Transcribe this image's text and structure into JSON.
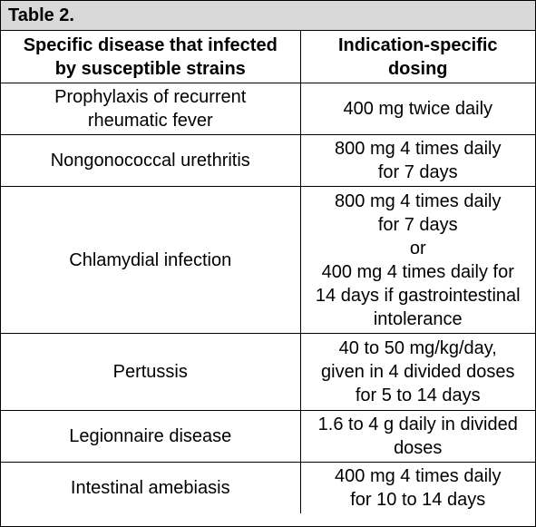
{
  "caption": "Table 2.",
  "headers": [
    [
      "Specific disease that infected",
      "by susceptible strains"
    ],
    [
      "Indication-specific",
      "dosing"
    ]
  ],
  "rows": [
    {
      "disease": [
        "Prophylaxis of recurrent",
        "rheumatic fever"
      ],
      "dosing": [
        "400 mg twice daily"
      ]
    },
    {
      "disease": [
        "Nongonococcal urethritis"
      ],
      "dosing": [
        "800 mg 4 times daily",
        "for 7 days"
      ]
    },
    {
      "disease": [
        "Chlamydial infection"
      ],
      "dosing": [
        "800 mg 4 times daily",
        "for 7 days",
        "or",
        "400 mg 4 times daily for",
        "14 days if gastrointestinal",
        "intolerance"
      ]
    },
    {
      "disease": [
        "Pertussis"
      ],
      "dosing": [
        "40 to 50 mg/kg/day,",
        "given in 4 divided doses",
        "for 5 to 14 days"
      ]
    },
    {
      "disease": [
        "Legionnaire disease"
      ],
      "dosing": [
        "1.6 to 4 g daily in divided",
        "doses"
      ]
    },
    {
      "disease": [
        "Intestinal amebiasis"
      ],
      "dosing": [
        "400 mg 4 times daily",
        "for 10 to 14 days"
      ]
    }
  ]
}
